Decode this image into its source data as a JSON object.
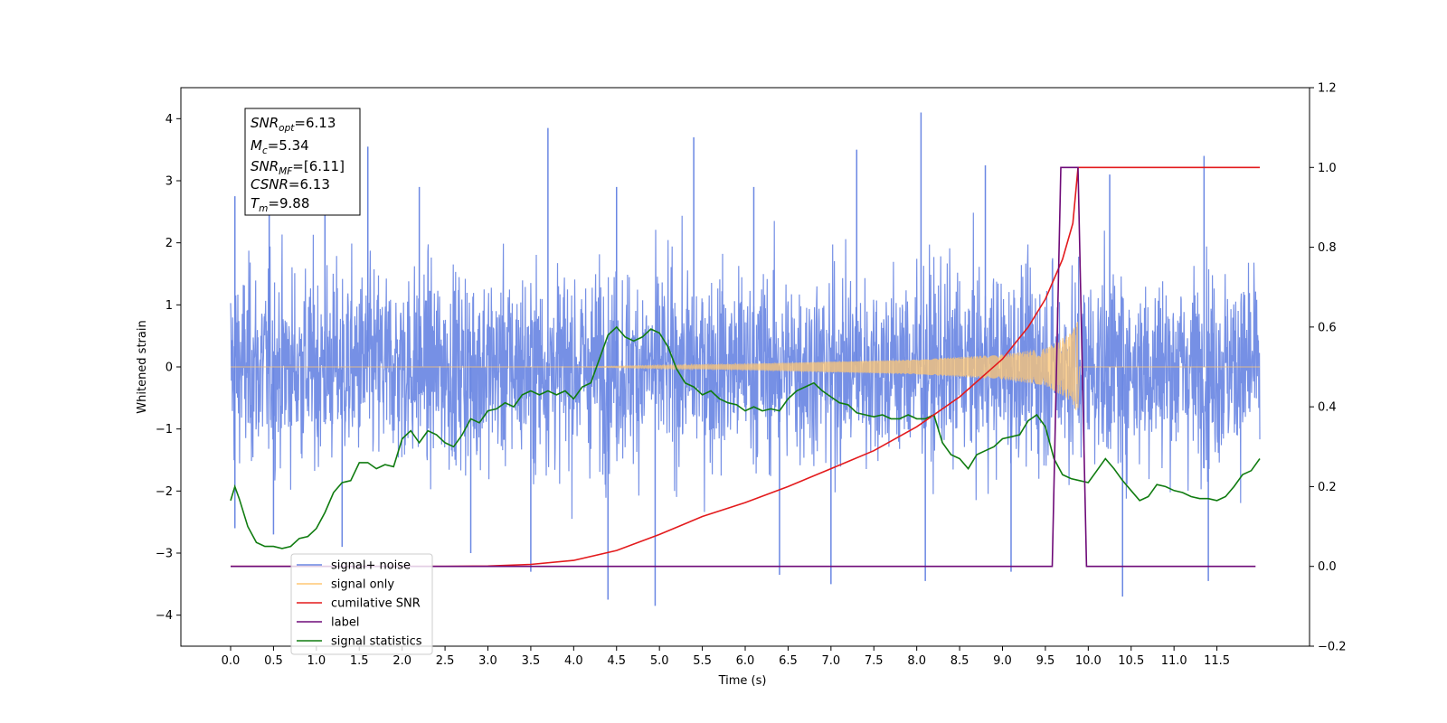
{
  "chart_data": {
    "type": "line",
    "xlabel": "Time (s)",
    "ylabel_left": "Whitened strain",
    "ylabel_right": "",
    "xlim": [
      -0.58,
      12.58
    ],
    "ylim_left": [
      -4.5,
      4.5
    ],
    "ylim_right": [
      -0.2,
      1.2
    ],
    "x_ticks": [
      "0.0",
      "0.5",
      "1.0",
      "1.5",
      "2.0",
      "2.5",
      "3.0",
      "3.5",
      "4.0",
      "4.5",
      "5.0",
      "5.5",
      "6.0",
      "6.5",
      "7.0",
      "7.5",
      "8.0",
      "8.5",
      "9.0",
      "9.5",
      "10.0",
      "10.5",
      "11.0",
      "11.5"
    ],
    "y_ticks_left": [
      "4",
      "3",
      "2",
      "1",
      "0",
      "−1",
      "−2",
      "−3",
      "−4"
    ],
    "y_ticks_right": [
      "1.2",
      "1.0",
      "0.8",
      "0.6",
      "0.4",
      "0.2",
      "0.0",
      "−0.2"
    ],
    "annotation": [
      {
        "base": "SNR",
        "sub": "opt",
        "value": "=6.13"
      },
      {
        "base": "M",
        "sub": "c",
        "value": "=5.34"
      },
      {
        "base": "SNR",
        "sub": "MF",
        "value": "=[6.11]"
      },
      {
        "base": "CSNR",
        "sub": "",
        "value": "=6.13"
      },
      {
        "base": "T",
        "sub": "m",
        "value": "=9.88"
      }
    ],
    "legend": {
      "placement": "lower-left",
      "entries": [
        {
          "label": "signal+ noise",
          "color": "#6a87e3"
        },
        {
          "label": "signal only",
          "color": "#ffc773"
        },
        {
          "label": "cumilative SNR",
          "color": "#e31a1c"
        },
        {
          "label": "label",
          "color": "#6e0a78"
        },
        {
          "label": "signal statistics",
          "color": "#107c10"
        }
      ]
    },
    "series": [
      {
        "name": "signal+ noise",
        "axis": "left",
        "color": "#6a87e3",
        "x_range": [
          0.0,
          12.0
        ],
        "envelope_peaks": [
          [
            0.05,
            2.75
          ],
          [
            0.45,
            3.2
          ],
          [
            1.1,
            3.3
          ],
          [
            1.6,
            3.55
          ],
          [
            2.2,
            2.9
          ],
          [
            3.7,
            3.85
          ],
          [
            4.5,
            2.9
          ],
          [
            5.4,
            3.7
          ],
          [
            6.1,
            2.9
          ],
          [
            7.3,
            3.5
          ],
          [
            8.05,
            4.1
          ],
          [
            8.8,
            3.25
          ],
          [
            10.25,
            3.1
          ],
          [
            11.35,
            3.4
          ]
        ],
        "envelope_troughs": [
          [
            0.05,
            -2.6
          ],
          [
            0.5,
            -2.7
          ],
          [
            1.3,
            -2.9
          ],
          [
            2.8,
            -3.0
          ],
          [
            3.5,
            -3.3
          ],
          [
            4.4,
            -3.75
          ],
          [
            4.95,
            -3.85
          ],
          [
            6.4,
            -3.35
          ],
          [
            7.0,
            -3.5
          ],
          [
            8.1,
            -3.45
          ],
          [
            9.1,
            -3.3
          ],
          [
            10.4,
            -3.7
          ],
          [
            11.4,
            -3.45
          ]
        ]
      },
      {
        "name": "signal only",
        "axis": "left",
        "color": "#ffc773",
        "chirp": {
          "start": 4.0,
          "merger": 9.88,
          "amp_end": 0.75
        },
        "values": [
          [
            0.0,
            0.0
          ],
          [
            4.0,
            0.0
          ],
          [
            6.0,
            0.05
          ],
          [
            8.0,
            0.12
          ],
          [
            9.0,
            0.2
          ],
          [
            9.5,
            0.3
          ],
          [
            9.8,
            0.55
          ],
          [
            9.88,
            0.75
          ],
          [
            9.9,
            0.0
          ],
          [
            12.0,
            0.0
          ]
        ]
      },
      {
        "name": "cumilative SNR",
        "axis": "right",
        "color": "#e31a1c",
        "values": [
          [
            0.0,
            0.0
          ],
          [
            2.5,
            0.0
          ],
          [
            3.0,
            0.001
          ],
          [
            3.5,
            0.005
          ],
          [
            4.0,
            0.015
          ],
          [
            4.5,
            0.04
          ],
          [
            5.0,
            0.08
          ],
          [
            5.5,
            0.125
          ],
          [
            6.0,
            0.16
          ],
          [
            6.5,
            0.2
          ],
          [
            7.0,
            0.245
          ],
          [
            7.5,
            0.29
          ],
          [
            8.0,
            0.35
          ],
          [
            8.5,
            0.425
          ],
          [
            9.0,
            0.52
          ],
          [
            9.3,
            0.6
          ],
          [
            9.5,
            0.67
          ],
          [
            9.7,
            0.77
          ],
          [
            9.82,
            0.86
          ],
          [
            9.88,
            1.0
          ],
          [
            12.0,
            1.0
          ]
        ]
      },
      {
        "name": "label",
        "axis": "right",
        "color": "#6e0a78",
        "values": [
          [
            0.0,
            0.0
          ],
          [
            9.58,
            0.0
          ],
          [
            9.68,
            1.0
          ],
          [
            9.88,
            1.0
          ],
          [
            9.98,
            0.0
          ],
          [
            11.95,
            0.0
          ]
        ]
      },
      {
        "name": "signal statistics",
        "axis": "right",
        "color": "#107c10",
        "values": [
          [
            0.0,
            0.165
          ],
          [
            0.05,
            0.2
          ],
          [
            0.1,
            0.17
          ],
          [
            0.2,
            0.1
          ],
          [
            0.3,
            0.06
          ],
          [
            0.4,
            0.05
          ],
          [
            0.5,
            0.05
          ],
          [
            0.6,
            0.045
          ],
          [
            0.7,
            0.05
          ],
          [
            0.8,
            0.07
          ],
          [
            0.9,
            0.075
          ],
          [
            1.0,
            0.095
          ],
          [
            1.1,
            0.135
          ],
          [
            1.2,
            0.185
          ],
          [
            1.3,
            0.21
          ],
          [
            1.4,
            0.215
          ],
          [
            1.5,
            0.26
          ],
          [
            1.6,
            0.26
          ],
          [
            1.7,
            0.245
          ],
          [
            1.8,
            0.255
          ],
          [
            1.9,
            0.25
          ],
          [
            2.0,
            0.32
          ],
          [
            2.1,
            0.34
          ],
          [
            2.2,
            0.31
          ],
          [
            2.3,
            0.34
          ],
          [
            2.4,
            0.33
          ],
          [
            2.5,
            0.31
          ],
          [
            2.6,
            0.3
          ],
          [
            2.7,
            0.33
          ],
          [
            2.8,
            0.37
          ],
          [
            2.9,
            0.36
          ],
          [
            3.0,
            0.39
          ],
          [
            3.1,
            0.395
          ],
          [
            3.2,
            0.41
          ],
          [
            3.3,
            0.4
          ],
          [
            3.4,
            0.43
          ],
          [
            3.5,
            0.44
          ],
          [
            3.6,
            0.43
          ],
          [
            3.7,
            0.44
          ],
          [
            3.8,
            0.43
          ],
          [
            3.9,
            0.44
          ],
          [
            4.0,
            0.42
          ],
          [
            4.1,
            0.45
          ],
          [
            4.2,
            0.46
          ],
          [
            4.3,
            0.52
          ],
          [
            4.4,
            0.58
          ],
          [
            4.5,
            0.6
          ],
          [
            4.6,
            0.575
          ],
          [
            4.7,
            0.565
          ],
          [
            4.8,
            0.575
          ],
          [
            4.9,
            0.595
          ],
          [
            5.0,
            0.585
          ],
          [
            5.1,
            0.55
          ],
          [
            5.2,
            0.495
          ],
          [
            5.3,
            0.46
          ],
          [
            5.4,
            0.45
          ],
          [
            5.5,
            0.43
          ],
          [
            5.6,
            0.44
          ],
          [
            5.7,
            0.42
          ],
          [
            5.8,
            0.41
          ],
          [
            5.9,
            0.405
          ],
          [
            6.0,
            0.39
          ],
          [
            6.1,
            0.4
          ],
          [
            6.2,
            0.39
          ],
          [
            6.3,
            0.395
          ],
          [
            6.4,
            0.39
          ],
          [
            6.5,
            0.42
          ],
          [
            6.6,
            0.44
          ],
          [
            6.7,
            0.45
          ],
          [
            6.8,
            0.46
          ],
          [
            6.9,
            0.44
          ],
          [
            7.0,
            0.425
          ],
          [
            7.1,
            0.41
          ],
          [
            7.2,
            0.405
          ],
          [
            7.3,
            0.385
          ],
          [
            7.4,
            0.38
          ],
          [
            7.5,
            0.375
          ],
          [
            7.6,
            0.38
          ],
          [
            7.7,
            0.37
          ],
          [
            7.8,
            0.37
          ],
          [
            7.9,
            0.38
          ],
          [
            8.0,
            0.37
          ],
          [
            8.1,
            0.37
          ],
          [
            8.2,
            0.38
          ],
          [
            8.3,
            0.31
          ],
          [
            8.4,
            0.28
          ],
          [
            8.5,
            0.27
          ],
          [
            8.6,
            0.245
          ],
          [
            8.7,
            0.28
          ],
          [
            8.8,
            0.29
          ],
          [
            8.9,
            0.3
          ],
          [
            9.0,
            0.32
          ],
          [
            9.1,
            0.325
          ],
          [
            9.2,
            0.33
          ],
          [
            9.3,
            0.365
          ],
          [
            9.4,
            0.38
          ],
          [
            9.5,
            0.35
          ],
          [
            9.6,
            0.27
          ],
          [
            9.7,
            0.23
          ],
          [
            9.8,
            0.22
          ],
          [
            9.9,
            0.215
          ],
          [
            10.0,
            0.21
          ],
          [
            10.1,
            0.24
          ],
          [
            10.2,
            0.27
          ],
          [
            10.3,
            0.245
          ],
          [
            10.4,
            0.215
          ],
          [
            10.5,
            0.19
          ],
          [
            10.6,
            0.165
          ],
          [
            10.7,
            0.175
          ],
          [
            10.8,
            0.205
          ],
          [
            10.9,
            0.2
          ],
          [
            11.0,
            0.19
          ],
          [
            11.1,
            0.185
          ],
          [
            11.2,
            0.175
          ],
          [
            11.3,
            0.17
          ],
          [
            11.4,
            0.17
          ],
          [
            11.5,
            0.165
          ],
          [
            11.6,
            0.175
          ],
          [
            11.7,
            0.2
          ],
          [
            11.8,
            0.23
          ],
          [
            11.9,
            0.24
          ],
          [
            12.0,
            0.27
          ]
        ]
      }
    ]
  }
}
